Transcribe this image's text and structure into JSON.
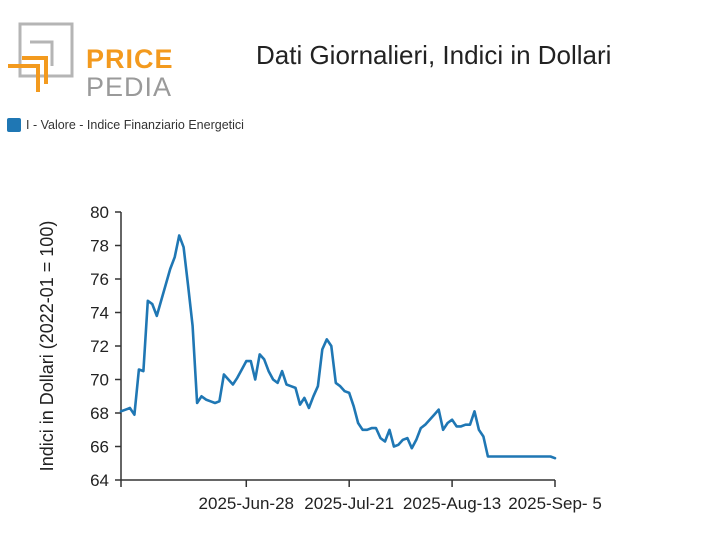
{
  "logo": {
    "line1": "PRICE",
    "line2": "PEDIA"
  },
  "colors": {
    "series": "#1f77b4",
    "logo_orange": "#f39a1e",
    "logo_gray": "#9a9a9a"
  },
  "chart_data": {
    "type": "line",
    "title": "Dati Giornalieri, Indici in Dollari",
    "ylabel": "Indici in Dollari (2022-01 = 100)",
    "xlabel": "",
    "ylim": [
      64,
      80
    ],
    "yticks": [
      64,
      66,
      68,
      70,
      72,
      74,
      76,
      78,
      80
    ],
    "xticks": [
      "2025-Jun-28",
      "2025-Jul-21",
      "2025-Aug-13",
      "2025-Sep- 5"
    ],
    "x_tick_days": [
      28,
      51,
      74,
      97
    ],
    "x_range_days": [
      0,
      97
    ],
    "grid": false,
    "legend_position": "top-left",
    "series": [
      {
        "name": "I - Valore - Indice Finanziario Energetici",
        "day": [
          0,
          2,
          3,
          4,
          5,
          6,
          7,
          8,
          11,
          12,
          13,
          14,
          15,
          16,
          17,
          18,
          19,
          20,
          21,
          22,
          23,
          24,
          25,
          26,
          27,
          28,
          29,
          30,
          31,
          32,
          33,
          34,
          35,
          36,
          37,
          38,
          39,
          40,
          41,
          42,
          43,
          44,
          45,
          46,
          47,
          48,
          49,
          50,
          51,
          52,
          53,
          54,
          55,
          56,
          57,
          58,
          59,
          60,
          61,
          62,
          63,
          64,
          65,
          66,
          67,
          68,
          69,
          70,
          71,
          72,
          73,
          74,
          75,
          76,
          77,
          78,
          79,
          80,
          81,
          82,
          83,
          84,
          85,
          86,
          87,
          88,
          89,
          90,
          91,
          92,
          93,
          94,
          95,
          96,
          97
        ],
        "values": [
          68.1,
          68.3,
          67.9,
          70.6,
          70.5,
          74.7,
          74.5,
          73.8,
          76.6,
          77.3,
          78.6,
          77.9,
          75.6,
          73.2,
          68.6,
          69.0,
          68.8,
          68.7,
          68.6,
          68.7,
          70.3,
          70.0,
          69.7,
          70.1,
          70.6,
          71.1,
          71.1,
          70.0,
          71.5,
          71.2,
          70.5,
          70.0,
          69.8,
          70.5,
          69.7,
          69.6,
          69.5,
          68.5,
          68.9,
          68.3,
          69.0,
          69.6,
          71.8,
          72.4,
          72.0,
          69.8,
          69.6,
          69.3,
          69.2,
          68.4,
          67.4,
          67.0,
          67.0,
          67.1,
          67.1,
          66.5,
          66.3,
          67.0,
          66.0,
          66.1,
          66.4,
          66.5,
          65.9,
          66.4,
          67.1,
          67.3,
          67.6,
          67.9,
          68.2,
          67.0,
          67.4,
          67.6,
          67.2,
          67.2,
          67.3,
          67.3,
          68.1,
          67.0,
          66.6,
          65.4,
          65.4,
          65.4,
          65.4,
          65.4,
          65.4,
          65.4,
          65.4,
          65.4,
          65.4,
          65.4,
          65.4,
          65.4,
          65.4,
          65.4,
          65.3
        ]
      }
    ]
  }
}
